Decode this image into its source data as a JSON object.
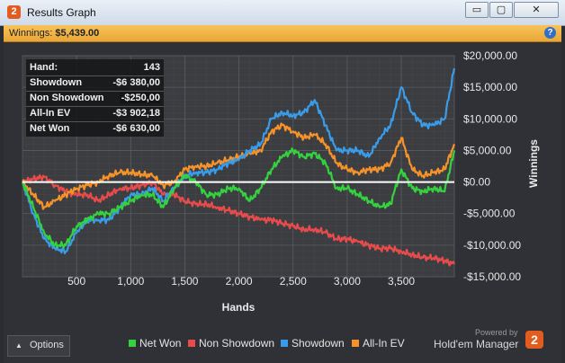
{
  "window": {
    "title": "Results Graph",
    "app_icon": "2",
    "minimize_label": "▭",
    "restore_label": "▢",
    "close_label": "✕"
  },
  "winnings_bar": {
    "label": "Winnings:",
    "value": "$5,439.00",
    "help_icon": "?"
  },
  "stats": [
    {
      "label": "Hand:",
      "value": "143"
    },
    {
      "label": "Showdown",
      "value": "-$6 380,00"
    },
    {
      "label": "Non Showdown",
      "value": "-$250,00"
    },
    {
      "label": "All-In EV",
      "value": "-$3 902,18"
    },
    {
      "label": "Net Won",
      "value": "-$6 630,00"
    }
  ],
  "options_label": "Options",
  "powered_by": "Powered by",
  "brand": "Hold'em Manager",
  "chart_data": {
    "type": "line",
    "xlabel": "Hands",
    "ylabel": "Winnings",
    "xlim": [
      0,
      3990
    ],
    "ylim": [
      -15000,
      20000
    ],
    "x_ticks": [
      500,
      1000,
      1500,
      2000,
      2500,
      3000,
      3500
    ],
    "x_tick_labels": [
      "500",
      "1,000",
      "1,500",
      "2,000",
      "2,500",
      "3,000",
      "3,500"
    ],
    "y_ticks": [
      20000,
      15000,
      10000,
      5000,
      0,
      -5000,
      -10000,
      -15000
    ],
    "y_tick_labels": [
      "$20,000.00",
      "$15,000.00",
      "$10,000.00",
      "$5,000.00",
      "$0.00",
      "-$5,000.00",
      "-$10,000.00",
      "-$15,000.00"
    ],
    "grid": true,
    "legend_position": "bottom",
    "x": [
      0,
      100,
      200,
      300,
      400,
      500,
      600,
      700,
      800,
      900,
      1000,
      1100,
      1200,
      1300,
      1400,
      1500,
      1600,
      1700,
      1800,
      1900,
      2000,
      2100,
      2200,
      2300,
      2400,
      2500,
      2600,
      2700,
      2800,
      2900,
      3000,
      3100,
      3200,
      3300,
      3400,
      3500,
      3600,
      3700,
      3800,
      3900,
      3990
    ],
    "series": [
      {
        "name": "Net Won",
        "color": "#35d23f",
        "values": [
          0,
          -4000,
          -8000,
          -10000,
          -10000,
          -7000,
          -6000,
          -5000,
          -5000,
          -4000,
          -3000,
          -2000,
          -2000,
          -4000,
          -1000,
          1000,
          0,
          -2000,
          -2000,
          -1000,
          -1000,
          -3000,
          -1000,
          2000,
          4000,
          5000,
          4000,
          4500,
          3000,
          -1000,
          -1000,
          -2000,
          -3000,
          -4000,
          -3500,
          2000,
          -1000,
          -1500,
          -1000,
          -1500,
          5000
        ]
      },
      {
        "name": "Non Showdown",
        "color": "#e84b4b",
        "values": [
          0,
          500,
          800,
          -500,
          -1500,
          -2000,
          -2000,
          -3000,
          -2000,
          -1000,
          -1000,
          -500,
          0,
          -2000,
          -2000,
          -3000,
          -3500,
          -3500,
          -4000,
          -4500,
          -5000,
          -5500,
          -6000,
          -6000,
          -6500,
          -7000,
          -7500,
          -7500,
          -8000,
          -9000,
          -9000,
          -9500,
          -10000,
          -10500,
          -10500,
          -11000,
          -11500,
          -12000,
          -12000,
          -12500,
          -13000
        ]
      },
      {
        "name": "Showdown",
        "color": "#3a9be8",
        "values": [
          0,
          -5000,
          -9000,
          -10500,
          -11000,
          -8000,
          -6000,
          -6000,
          -6000,
          -4000,
          -2000,
          -2000,
          -1000,
          -3000,
          -1000,
          1000,
          1500,
          1500,
          2000,
          3000,
          3500,
          5000,
          6000,
          10000,
          11000,
          10500,
          11000,
          13000,
          9000,
          5000,
          5000,
          5000,
          4000,
          7000,
          9000,
          15000,
          11000,
          9000,
          9000,
          10000,
          18000
        ]
      },
      {
        "name": "All-In EV",
        "color": "#f5922a",
        "values": [
          0,
          -2000,
          -4000,
          -3000,
          -2000,
          -1000,
          -500,
          0,
          1000,
          1500,
          1500,
          1200,
          1000,
          -500,
          0,
          2000,
          2500,
          2500,
          3000,
          3500,
          4000,
          4500,
          5000,
          8000,
          9000,
          8000,
          7000,
          7500,
          6000,
          3000,
          2000,
          1500,
          2000,
          2000,
          3000,
          7000,
          2000,
          1000,
          1500,
          2000,
          6000
        ]
      }
    ]
  }
}
